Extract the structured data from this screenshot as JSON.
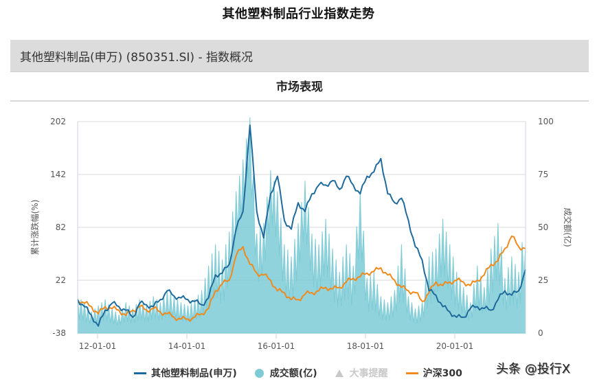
{
  "page": {
    "title": "其他塑料制品行业指数走势",
    "info_bar": "其他塑料制品(申万) (850351.SI) - 指数概况",
    "section_title": "市场表现",
    "watermark": "头条 @投行X"
  },
  "colors": {
    "index_line": "#1f6a9c",
    "volume_area": "#7ecbd6",
    "hs300_line": "#f08a1c",
    "events_disabled": "#c8c8c8",
    "grid": "#e6e6e6",
    "axis": "#c8d6e2"
  },
  "legend": [
    {
      "label": "其他塑料制品(申万)",
      "type": "line",
      "color": "#1f6a9c",
      "active": true
    },
    {
      "label": "成交额(亿)",
      "type": "dot",
      "color": "#7ecbd6",
      "active": true
    },
    {
      "label": "大事提醒",
      "type": "triangle",
      "color": "#c8c8c8",
      "active": false
    },
    {
      "label": "沪深300",
      "type": "line",
      "color": "#f08a1c",
      "active": true
    }
  ],
  "chart_data": {
    "type": "line",
    "title": "市场表现",
    "xlabel": "",
    "ylabel": "累计涨跌幅(%)",
    "y2label": "成交额(亿)",
    "ylim": [
      -38,
      202
    ],
    "y2lim": [
      0,
      100
    ],
    "yticks": [
      -38,
      22,
      82,
      142,
      202
    ],
    "y2ticks": [
      0,
      25,
      50,
      75,
      100
    ],
    "xticks": [
      "12-01-01",
      "14-01-01",
      "16-01-01",
      "18-01-01",
      "20-01-01"
    ],
    "x_range": [
      "2011-08",
      "2021-06"
    ],
    "grid": true,
    "legend_position": "bottom",
    "x": [
      "2011-08",
      "2011-10",
      "2011-12",
      "2012-02",
      "2012-04",
      "2012-06",
      "2012-08",
      "2012-10",
      "2012-12",
      "2013-02",
      "2013-04",
      "2013-06",
      "2013-08",
      "2013-10",
      "2013-12",
      "2014-02",
      "2014-04",
      "2014-06",
      "2014-08",
      "2014-10",
      "2014-12",
      "2015-02",
      "2015-04",
      "2015-05",
      "2015-06",
      "2015-07",
      "2015-08",
      "2015-09",
      "2015-10",
      "2015-11",
      "2015-12",
      "2016-01",
      "2016-02",
      "2016-04",
      "2016-06",
      "2016-08",
      "2016-10",
      "2016-12",
      "2017-02",
      "2017-04",
      "2017-06",
      "2017-08",
      "2017-10",
      "2017-12",
      "2018-01",
      "2018-02",
      "2018-04",
      "2018-06",
      "2018-08",
      "2018-10",
      "2018-12",
      "2019-02",
      "2019-04",
      "2019-06",
      "2019-08",
      "2019-10",
      "2019-12",
      "2020-02",
      "2020-04",
      "2020-06",
      "2020-08",
      "2020-10",
      "2020-12",
      "2021-02",
      "2021-04",
      "2021-06"
    ],
    "series": [
      {
        "name": "其他塑料制品(申万)",
        "axis": "left",
        "values": [
          0,
          -8,
          -18,
          -30,
          -12,
          -4,
          -8,
          -12,
          -20,
          -4,
          -6,
          -8,
          0,
          10,
          4,
          2,
          0,
          -2,
          -6,
          2,
          28,
          30,
          40,
          80,
          100,
          198,
          100,
          70,
          120,
          140,
          90,
          80,
          110,
          100,
          120,
          130,
          130,
          135,
          125,
          140,
          130,
          120,
          140,
          145,
          160,
          120,
          110,
          115,
          90,
          60,
          45,
          10,
          5,
          -8,
          -14,
          -20,
          -20,
          -10,
          -8,
          -10,
          -12,
          0,
          10,
          5,
          10,
          34
        ]
      },
      {
        "name": "沪深300",
        "axis": "left",
        "values": [
          0,
          -4,
          -8,
          -16,
          -8,
          -10,
          -12,
          -18,
          -12,
          -8,
          -12,
          -10,
          -14,
          -16,
          -20,
          -22,
          -22,
          -20,
          -16,
          -10,
          10,
          18,
          22,
          50,
          60,
          40,
          30,
          28,
          22,
          10,
          8,
          0,
          0,
          6,
          8,
          10,
          14,
          12,
          14,
          20,
          24,
          26,
          30,
          32,
          36,
          28,
          22,
          14,
          10,
          8,
          -2,
          8,
          20,
          16,
          20,
          22,
          20,
          16,
          22,
          28,
          40,
          44,
          58,
          72,
          60,
          58
        ]
      },
      {
        "name": "成交额(亿)",
        "axis": "right",
        "type": "area",
        "values": [
          12,
          10,
          7,
          9,
          11,
          8,
          6,
          10,
          8,
          11,
          9,
          12,
          10,
          14,
          12,
          10,
          9,
          11,
          14,
          22,
          30,
          24,
          36,
          55,
          70,
          90,
          35,
          40,
          65,
          55,
          30,
          25,
          40,
          60,
          35,
          30,
          42,
          28,
          20,
          30,
          22,
          55,
          18,
          20,
          12,
          10,
          14,
          30,
          12,
          8,
          10,
          25,
          28,
          42,
          30,
          20,
          15,
          10,
          22,
          15,
          28,
          40,
          18,
          25,
          20,
          42
        ]
      }
    ]
  }
}
